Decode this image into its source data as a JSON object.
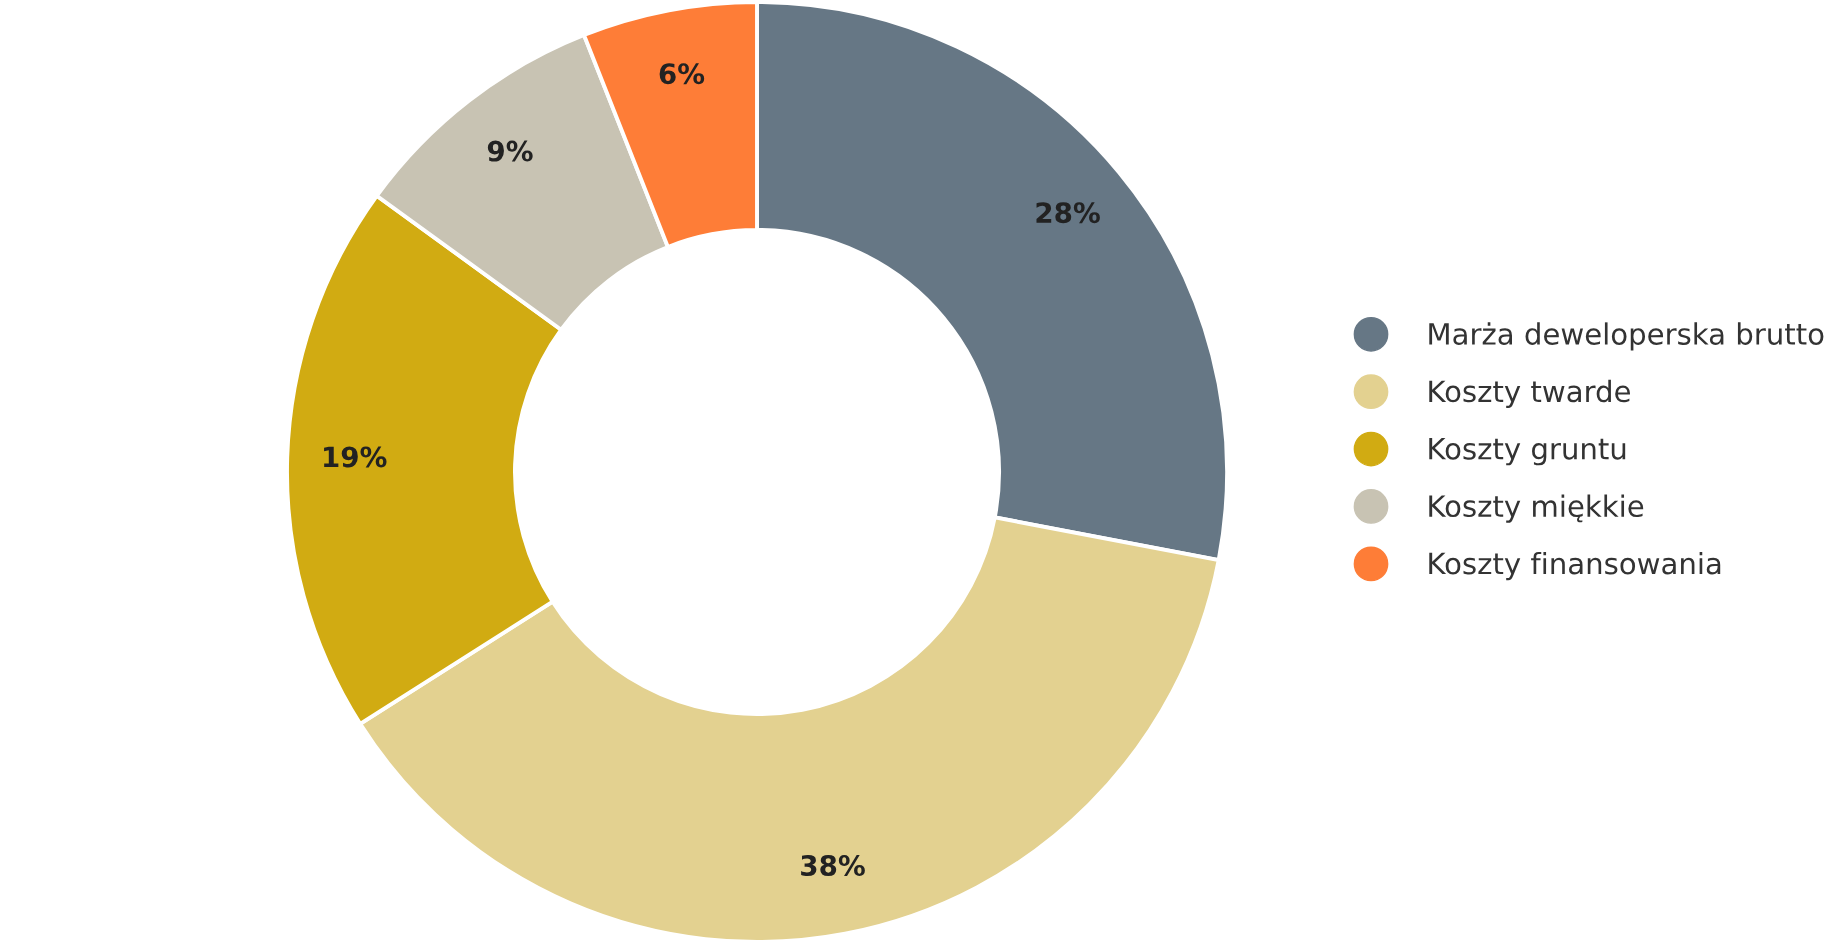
{
  "chart_data": {
    "type": "donut",
    "categories": [
      "Marża deweloperska brutto",
      "Koszty twarde",
      "Koszty gruntu",
      "Koszty miękkie",
      "Koszty finansowania"
    ],
    "values": [
      28,
      38,
      19,
      9,
      6
    ],
    "colors": [
      "#667785",
      "#e3d190",
      "#d1ab12",
      "#c8c3b3",
      "#fe7d37"
    ],
    "value_labels": [
      "28%",
      "38%",
      "19%",
      "9%",
      "6%"
    ],
    "legend": "right"
  }
}
